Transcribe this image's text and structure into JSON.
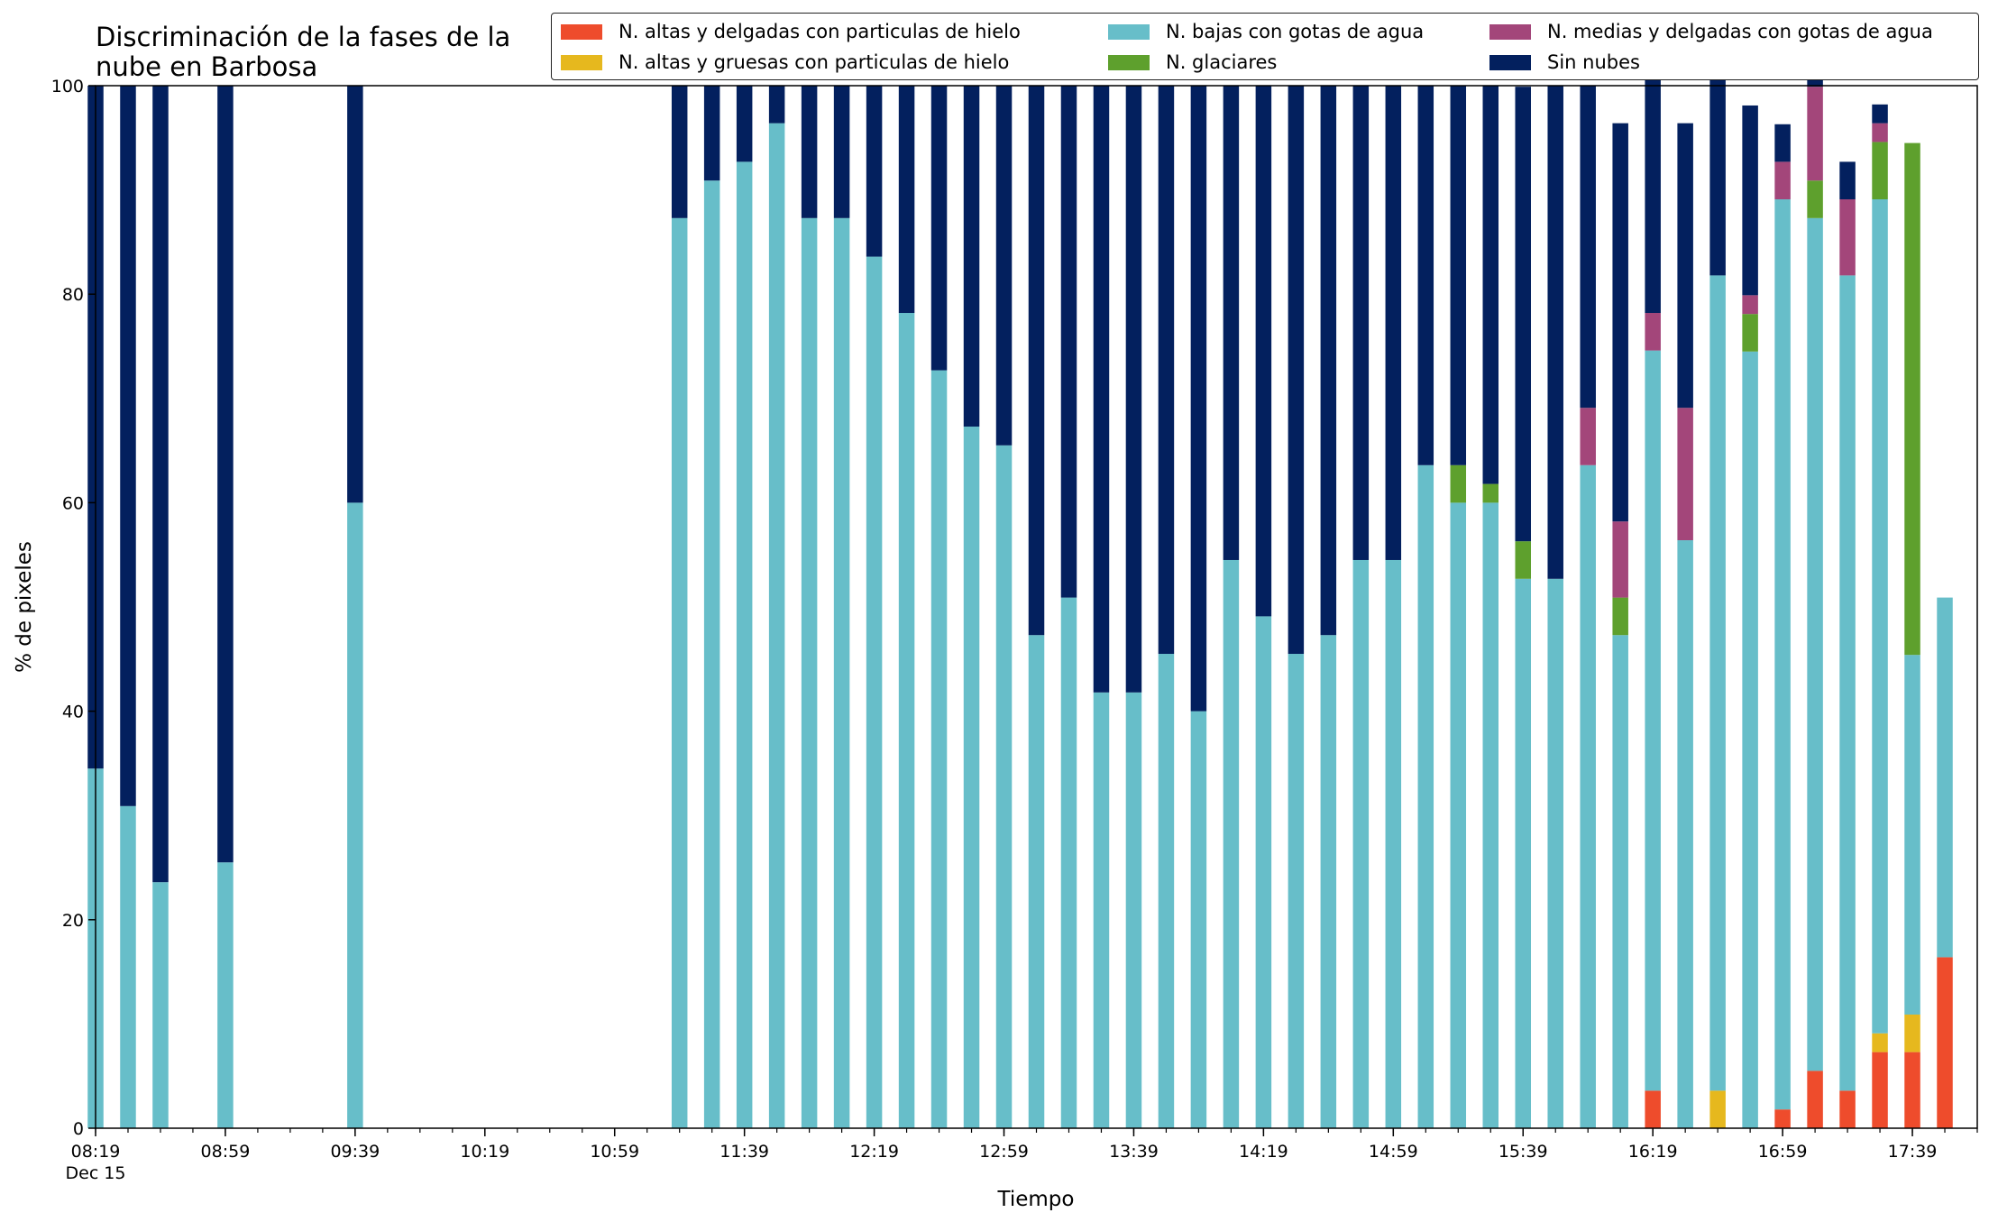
{
  "chart_data": {
    "type": "bar",
    "stacked": true,
    "title": "Discriminación de la fases de la\nnube en Barbosa",
    "xlabel": "Tiempo",
    "ylabel": "% de pixeles",
    "ylim": [
      0,
      100
    ],
    "yticks": [
      "0",
      "20",
      "40",
      "60",
      "80",
      "100"
    ],
    "xticks": [
      "08:19",
      "08:59",
      "09:39",
      "10:19",
      "10:59",
      "11:39",
      "12:19",
      "12:59",
      "13:39",
      "14:19",
      "14:59",
      "15:39",
      "16:19",
      "16:59",
      "17:39"
    ],
    "xtick_sublabel": "Dec 15",
    "grid": false,
    "legend_position": "top-right",
    "time_axis": {
      "start": "08:19",
      "end": "17:59",
      "tick_every_minutes": 10
    },
    "categories": [
      "08:19",
      "08:29",
      "08:39",
      "08:59",
      "09:39",
      "11:19",
      "11:29",
      "11:39",
      "11:49",
      "11:59",
      "12:09",
      "12:19",
      "12:29",
      "12:39",
      "12:49",
      "12:59",
      "13:09",
      "13:19",
      "13:29",
      "13:39",
      "13:49",
      "13:59",
      "14:09",
      "14:19",
      "14:29",
      "14:39",
      "14:49",
      "14:59",
      "15:09",
      "15:19",
      "15:29",
      "15:39",
      "15:49",
      "15:59",
      "16:09",
      "16:19",
      "16:29",
      "16:39",
      "16:49",
      "16:59",
      "17:09",
      "17:19",
      "17:29",
      "17:39",
      "17:49"
    ],
    "series": [
      {
        "name": "N. altas y delgadas con particulas de hielo",
        "color": "#ee4c2c",
        "values": [
          0,
          0,
          0,
          0,
          0,
          0,
          0,
          0,
          0,
          0,
          0,
          0,
          0,
          0,
          0,
          0,
          0,
          0,
          0,
          0,
          0,
          0,
          0,
          0,
          0,
          0,
          0,
          0,
          0,
          0,
          0,
          0,
          0,
          0,
          0,
          3.6,
          0,
          0,
          0,
          1.8,
          5.5,
          3.6,
          7.3,
          7.3,
          16.4
        ]
      },
      {
        "name": "N. altas y gruesas con particulas de hielo",
        "color": "#e6b81e",
        "values": [
          0,
          0,
          0,
          0,
          0,
          0,
          0,
          0,
          0,
          0,
          0,
          0,
          0,
          0,
          0,
          0,
          0,
          0,
          0,
          0,
          0,
          0,
          0,
          0,
          0,
          0,
          0,
          0,
          0,
          0,
          0,
          0,
          0,
          0,
          0,
          0,
          0,
          3.6,
          0,
          0,
          0,
          0,
          1.8,
          3.6,
          0
        ]
      },
      {
        "name": "N. bajas con gotas de agua",
        "color": "#67bec9",
        "values": [
          34.5,
          30.9,
          23.6,
          25.5,
          60.0,
          87.3,
          90.9,
          92.7,
          96.4,
          87.3,
          87.3,
          83.6,
          78.2,
          72.7,
          67.3,
          65.5,
          47.3,
          50.9,
          41.8,
          41.8,
          45.5,
          40.0,
          54.5,
          49.1,
          45.5,
          47.3,
          54.5,
          54.5,
          63.6,
          60.0,
          60.0,
          52.7,
          52.7,
          63.6,
          47.3,
          71.0,
          56.4,
          78.2,
          74.5,
          87.3,
          81.8,
          78.2,
          80.0,
          34.5,
          34.5
        ]
      },
      {
        "name": "N. glaciares",
        "color": "#5ea02d",
        "values": [
          0,
          0,
          0,
          0,
          0,
          0,
          0,
          0,
          0,
          0,
          0,
          0,
          0,
          0,
          0,
          0,
          0,
          0,
          0,
          0,
          0,
          0,
          0,
          0,
          0,
          0,
          0,
          0,
          0,
          3.6,
          1.8,
          3.6,
          0,
          0,
          3.6,
          0,
          0,
          0,
          3.6,
          0,
          3.6,
          0,
          5.5,
          49.1,
          0
        ]
      },
      {
        "name": "N. medias y delgadas con gotas de agua",
        "color": "#a3467a",
        "values": [
          0,
          0,
          0,
          0,
          0,
          0,
          0,
          0,
          0,
          0,
          0,
          0,
          0,
          0,
          0,
          0,
          0,
          0,
          0,
          0,
          0,
          0,
          0,
          0,
          0,
          0,
          0,
          0,
          0,
          0,
          0,
          0,
          0,
          5.5,
          7.3,
          3.6,
          12.7,
          0,
          1.8,
          3.6,
          9.0,
          7.3,
          1.8,
          0,
          0
        ]
      },
      {
        "name": "Sin nubes",
        "color": "#03205e",
        "values": [
          65.5,
          69.1,
          76.4,
          74.5,
          40.0,
          12.7,
          9.1,
          7.3,
          3.6,
          12.7,
          12.7,
          16.4,
          21.8,
          27.3,
          32.7,
          34.5,
          52.7,
          49.1,
          58.2,
          58.2,
          54.5,
          60.0,
          45.5,
          50.9,
          54.5,
          52.7,
          45.5,
          45.5,
          36.4,
          36.4,
          38.2,
          43.6,
          47.3,
          30.9,
          38.2,
          25.5,
          27.3,
          21.8,
          18.2,
          3.6,
          1.8,
          3.6,
          1.8,
          0,
          0
        ]
      }
    ]
  }
}
